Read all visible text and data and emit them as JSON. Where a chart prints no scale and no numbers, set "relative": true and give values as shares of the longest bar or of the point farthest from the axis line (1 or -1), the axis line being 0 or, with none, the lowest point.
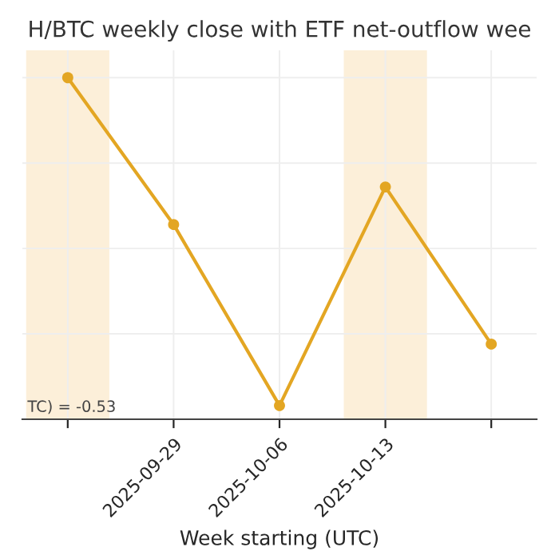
{
  "chart_data": {
    "type": "line",
    "title": "H/BTC weekly close with ETF net-outflow wee",
    "xlabel": "Week starting (UTC)",
    "relative": true,
    "x": [
      "2025-09-22",
      "2025-09-29",
      "2025-10-06",
      "2025-10-13",
      "2025-10-20"
    ],
    "series": [
      {
        "color": "#e3a623",
        "values": [
          1,
          0.57,
          0.04,
          0.68,
          0.22
        ]
      }
    ],
    "xlim": [
      "2025-09-19",
      "2025-10-23"
    ],
    "xticks": [
      {
        "value": "2025-09-22",
        "label": null
      },
      {
        "value": "2025-09-29",
        "label": "2025-09-29"
      },
      {
        "value": "2025-10-06",
        "label": "2025-10-06"
      },
      {
        "value": "2025-10-13",
        "label": "2025-10-13"
      },
      {
        "value": "2025-10-20",
        "label": null
      }
    ],
    "bands": [
      {
        "axis": "x",
        "from": "2025-09-19T06:00",
        "to": "2025-09-24T18:00",
        "color": "#fcefd9"
      },
      {
        "axis": "x",
        "from": "2025-10-10T06:00",
        "to": "2025-10-15T18:00",
        "color": "#fcefd9"
      }
    ],
    "annotations": [
      "TC) = -0.53"
    ],
    "grid": true,
    "marker": "circle",
    "line_style": "solid",
    "tick_labels": "x"
  }
}
